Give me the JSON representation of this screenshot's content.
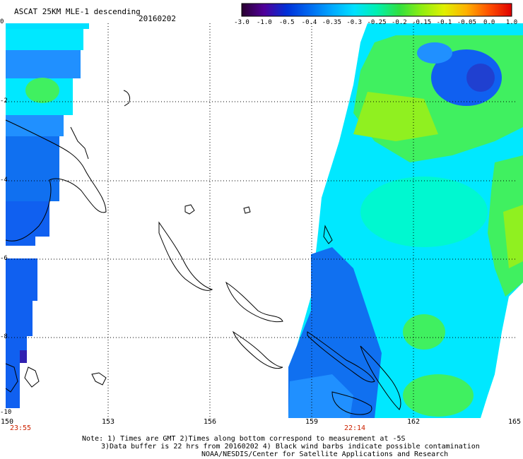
{
  "header": {
    "title": "ASCAT 25KM MLE-1 descending",
    "date": "20160202"
  },
  "colorbar": {
    "labels": [
      "-3.0",
      "-1.0",
      "-0.5",
      "-0.4",
      "-0.35",
      "-0.3",
      "-0.25",
      "-0.2",
      "-0.15",
      "-0.1",
      "-0.05",
      "0.0",
      "1.0"
    ],
    "colors": [
      "#2a0030",
      "#50009a",
      "#0030d8",
      "#0068f0",
      "#00a8ff",
      "#00e0ff",
      "#00f0b0",
      "#30e040",
      "#90ee10",
      "#e0f000",
      "#ffb000",
      "#ff5000",
      "#e00000"
    ]
  },
  "axes": {
    "lon_ticks": [
      "150",
      "153",
      "156",
      "159",
      "162",
      "165"
    ],
    "lat_ticks": [
      "0",
      "-2",
      "-4",
      "-6",
      "-8",
      "-10"
    ]
  },
  "times": {
    "left": "23:55",
    "right": "22:14"
  },
  "notes": {
    "line1": "Note: 1) Times are GMT 2)Times along bottom correspond to measurement at -5S",
    "line2": "3)Data buffer is 22 hrs from 20160202 4) Black wind barbs indicate possible contamination",
    "line3": "NOAA/NESDIS/Center for Satellite Applications and Research"
  },
  "map": {
    "lon_min": 150,
    "lon_max": 165,
    "lat_min": -10,
    "lat_max": 0,
    "swath_colors": {
      "blue": "#1060f0",
      "mid_blue": "#2090ff",
      "cyan": "#00e8ff",
      "aqua": "#00f8d0",
      "green": "#40f060",
      "lime": "#90f020",
      "dark_blue": "#2040d0"
    }
  }
}
